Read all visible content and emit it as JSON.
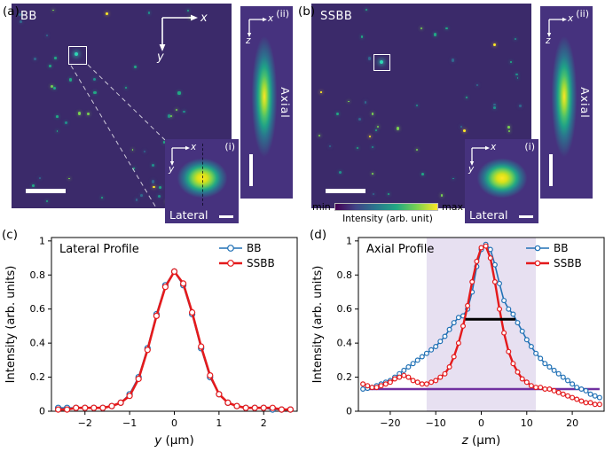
{
  "figure": {
    "panels": {
      "a": {
        "label": "(a)",
        "beam_label": "BB",
        "axes": {
          "h": "x",
          "v": "y"
        },
        "inset_lateral": {
          "label": "(i)",
          "caption": "Lateral",
          "axes": {
            "h": "x",
            "v": "y"
          }
        },
        "inset_axial": {
          "label": "(ii)",
          "caption": "Axial",
          "axes": {
            "h": "x",
            "v": "z"
          }
        }
      },
      "b": {
        "label": "(b)",
        "beam_label": "SSBB",
        "inset_lateral": {
          "label": "(i)",
          "caption": "Lateral",
          "axes": {
            "h": "x",
            "v": "y"
          }
        },
        "inset_axial": {
          "label": "(ii)",
          "caption": "Axial",
          "axes": {
            "h": "x",
            "v": "z"
          }
        }
      },
      "c": {
        "label": "(c)"
      },
      "d": {
        "label": "(d)"
      }
    },
    "colorbar": {
      "min_label": "min",
      "max_label": "max",
      "title": "Intensity (arb. unit)",
      "gradient": [
        "#440154",
        "#414487",
        "#2a788e",
        "#22a884",
        "#7ad151",
        "#fde725"
      ]
    },
    "image_colors": {
      "background": "#3b2a6a",
      "inset_background": "#46327e",
      "dot_palette": [
        "#fde725",
        "#7ad151",
        "#22a884",
        "#21918c",
        "#31688e"
      ]
    }
  },
  "chart_data": [
    {
      "id": "lateral_profile",
      "type": "line",
      "title": "Lateral Profile",
      "xlabel_var": "y",
      "xlabel_unit": "(μm)",
      "ylabel": "Intensity (arb. units)",
      "xlim": [
        -2.75,
        2.75
      ],
      "ylim": [
        0,
        1.02
      ],
      "xticks": [
        -2,
        -1,
        0,
        1,
        2
      ],
      "yticks": [
        0,
        0.2,
        0.4,
        0.6,
        0.8,
        1
      ],
      "legend_position": "top-right",
      "x": [
        -2.6,
        -2.4,
        -2.2,
        -2,
        -1.8,
        -1.6,
        -1.4,
        -1.2,
        -1,
        -0.8,
        -0.6,
        -0.4,
        -0.2,
        0,
        0.2,
        0.4,
        0.6,
        0.8,
        1,
        1.2,
        1.4,
        1.6,
        1.8,
        2,
        2.2,
        2.4,
        2.6
      ],
      "series": [
        {
          "name": "BB",
          "color": "#2171b5",
          "lw": 1.6,
          "marker_r": 3,
          "values": [
            0.02,
            0.02,
            0.02,
            0.02,
            0.02,
            0.02,
            0.03,
            0.05,
            0.1,
            0.2,
            0.37,
            0.57,
            0.74,
            0.82,
            0.74,
            0.57,
            0.37,
            0.2,
            0.1,
            0.05,
            0.03,
            0.02,
            0.02,
            0.02,
            0.01,
            0.01,
            0.01
          ]
        },
        {
          "name": "SSBB",
          "color": "#e41a1c",
          "lw": 2.6,
          "marker_r": 3,
          "values": [
            0.01,
            0.01,
            0.02,
            0.02,
            0.02,
            0.02,
            0.03,
            0.05,
            0.09,
            0.19,
            0.36,
            0.56,
            0.73,
            0.82,
            0.75,
            0.58,
            0.38,
            0.21,
            0.1,
            0.05,
            0.03,
            0.02,
            0.02,
            0.02,
            0.02,
            0.01,
            0.01
          ]
        }
      ]
    },
    {
      "id": "axial_profile",
      "type": "line",
      "title": "Axial Profile",
      "xlabel_var": "z",
      "xlabel_unit": "(μm)",
      "ylabel": "Intensity (arb. units)",
      "xlim": [
        -27,
        27
      ],
      "ylim": [
        0,
        1.02
      ],
      "xticks": [
        -20,
        -10,
        0,
        10,
        20
      ],
      "yticks": [
        0,
        0.2,
        0.4,
        0.6,
        0.8,
        1
      ],
      "legend_position": "top-right",
      "x": [
        -26,
        -25,
        -24,
        -23,
        -22,
        -21,
        -20,
        -19,
        -18,
        -17,
        -16,
        -15,
        -14,
        -13,
        -12,
        -11,
        -10,
        -9,
        -8,
        -7,
        -6,
        -5,
        -4,
        -3,
        -2,
        -1,
        0,
        1,
        2,
        3,
        4,
        5,
        6,
        7,
        8,
        9,
        10,
        11,
        12,
        13,
        14,
        15,
        16,
        17,
        18,
        19,
        20,
        21,
        22,
        23,
        24,
        25,
        26
      ],
      "series": [
        {
          "name": "BB",
          "color": "#2171b5",
          "lw": 1.6,
          "marker_r": 2.4,
          "values": [
            0.13,
            0.135,
            0.14,
            0.15,
            0.16,
            0.17,
            0.18,
            0.2,
            0.22,
            0.24,
            0.26,
            0.28,
            0.3,
            0.32,
            0.34,
            0.36,
            0.38,
            0.41,
            0.44,
            0.48,
            0.52,
            0.55,
            0.56,
            0.6,
            0.7,
            0.85,
            0.95,
            0.98,
            0.95,
            0.86,
            0.75,
            0.65,
            0.6,
            0.57,
            0.52,
            0.47,
            0.42,
            0.38,
            0.34,
            0.31,
            0.28,
            0.26,
            0.24,
            0.22,
            0.2,
            0.18,
            0.16,
            0.14,
            0.13,
            0.12,
            0.1,
            0.09,
            0.08
          ]
        },
        {
          "name": "SSBB",
          "color": "#e41a1c",
          "lw": 2.4,
          "marker_r": 2.4,
          "values": [
            0.16,
            0.15,
            0.14,
            0.14,
            0.15,
            0.16,
            0.17,
            0.19,
            0.2,
            0.21,
            0.2,
            0.18,
            0.17,
            0.16,
            0.16,
            0.17,
            0.18,
            0.2,
            0.22,
            0.26,
            0.32,
            0.4,
            0.5,
            0.62,
            0.76,
            0.88,
            0.96,
            0.97,
            0.9,
            0.76,
            0.6,
            0.46,
            0.35,
            0.28,
            0.23,
            0.19,
            0.17,
            0.15,
            0.14,
            0.14,
            0.13,
            0.13,
            0.12,
            0.11,
            0.1,
            0.09,
            0.08,
            0.07,
            0.06,
            0.05,
            0.05,
            0.04,
            0.04
          ]
        }
      ],
      "annotations": {
        "band": {
          "x": [
            -12,
            12
          ],
          "color": "#b9a6d6",
          "opacity": 0.35
        },
        "hlines": [
          {
            "y": 0.13,
            "x": [
              -26,
              26
            ],
            "color": "#7030a0",
            "lw": 2.5,
            "front": false
          },
          {
            "y": 0.54,
            "x": [
              -3.5,
              7.5
            ],
            "color": "#000000",
            "lw": 3,
            "front": true
          }
        ]
      }
    }
  ]
}
